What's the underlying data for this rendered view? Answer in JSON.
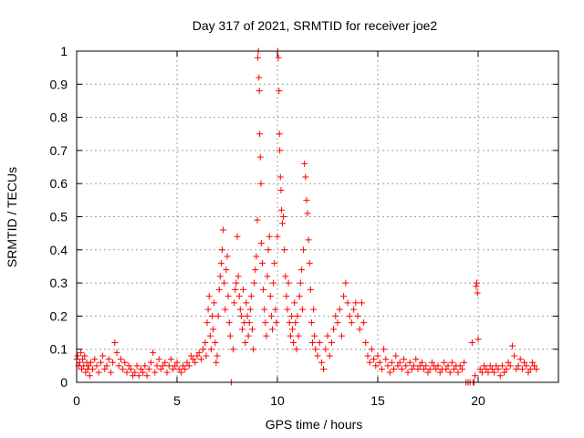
{
  "chart_data": {
    "type": "scatter",
    "title": "Day 317 of 2021, SRMTID for receiver joe2",
    "xlabel": "GPS time / hours",
    "ylabel": "SRMTID / TECUs",
    "xlim": [
      0,
      24
    ],
    "ylim": [
      0,
      1
    ],
    "x_ticks": [
      0,
      5,
      10,
      15,
      20
    ],
    "x_tick_labels": [
      "0",
      "5",
      "10",
      "15",
      "20"
    ],
    "y_ticks": [
      0,
      0.1,
      0.2,
      0.3,
      0.4,
      0.5,
      0.6,
      0.7,
      0.8,
      0.9,
      1
    ],
    "y_tick_labels": [
      "0",
      "0.1",
      "0.2",
      "0.3",
      "0.4",
      "0.5",
      "0.6",
      "0.7",
      "0.8",
      "0.9",
      "1"
    ],
    "grid": true,
    "marker": "+",
    "series": [
      {
        "name": "joe2",
        "color": "#ff0000",
        "points": [
          [
            0.0,
            0.07
          ],
          [
            0.05,
            0.08
          ],
          [
            0.1,
            0.05
          ],
          [
            0.15,
            0.06
          ],
          [
            0.2,
            0.09
          ],
          [
            0.25,
            0.04
          ],
          [
            0.3,
            0.07
          ],
          [
            0.35,
            0.05
          ],
          [
            0.4,
            0.08
          ],
          [
            0.45,
            0.03
          ],
          [
            0.5,
            0.06
          ],
          [
            0.55,
            0.04
          ],
          [
            0.6,
            0.05
          ],
          [
            0.65,
            0.02
          ],
          [
            0.7,
            0.06
          ],
          [
            0.8,
            0.04
          ],
          [
            0.9,
            0.07
          ],
          [
            1.0,
            0.05
          ],
          [
            1.1,
            0.03
          ],
          [
            1.2,
            0.06
          ],
          [
            1.3,
            0.08
          ],
          [
            1.4,
            0.04
          ],
          [
            1.5,
            0.05
          ],
          [
            1.6,
            0.07
          ],
          [
            1.7,
            0.03
          ],
          [
            1.8,
            0.06
          ],
          [
            1.9,
            0.12
          ],
          [
            2.0,
            0.09
          ],
          [
            2.1,
            0.05
          ],
          [
            2.2,
            0.07
          ],
          [
            2.3,
            0.04
          ],
          [
            2.4,
            0.06
          ],
          [
            2.5,
            0.03
          ],
          [
            2.6,
            0.05
          ],
          [
            2.7,
            0.04
          ],
          [
            2.8,
            0.02
          ],
          [
            2.9,
            0.03
          ],
          [
            3.0,
            0.05
          ],
          [
            3.1,
            0.02
          ],
          [
            3.2,
            0.04
          ],
          [
            3.3,
            0.03
          ],
          [
            3.4,
            0.05
          ],
          [
            3.5,
            0.02
          ],
          [
            3.6,
            0.04
          ],
          [
            3.7,
            0.06
          ],
          [
            3.8,
            0.09
          ],
          [
            3.9,
            0.03
          ],
          [
            4.0,
            0.05
          ],
          [
            4.1,
            0.07
          ],
          [
            4.2,
            0.04
          ],
          [
            4.3,
            0.05
          ],
          [
            4.4,
            0.06
          ],
          [
            4.5,
            0.03
          ],
          [
            4.6,
            0.05
          ],
          [
            4.7,
            0.07
          ],
          [
            4.8,
            0.04
          ],
          [
            4.9,
            0.05
          ],
          [
            5.0,
            0.06
          ],
          [
            5.1,
            0.04
          ],
          [
            5.2,
            0.03
          ],
          [
            5.3,
            0.05
          ],
          [
            5.4,
            0.04
          ],
          [
            5.5,
            0.06
          ],
          [
            5.6,
            0.05
          ],
          [
            5.7,
            0.08
          ],
          [
            5.8,
            0.07
          ],
          [
            5.9,
            0.06
          ],
          [
            6.0,
            0.08
          ],
          [
            6.1,
            0.09
          ],
          [
            6.2,
            0.07
          ],
          [
            6.3,
            0.1
          ],
          [
            6.4,
            0.12
          ],
          [
            6.45,
            0.08
          ],
          [
            6.5,
            0.18
          ],
          [
            6.55,
            0.22
          ],
          [
            6.6,
            0.26
          ],
          [
            6.65,
            0.14
          ],
          [
            6.7,
            0.1
          ],
          [
            6.75,
            0.2
          ],
          [
            6.8,
            0.16
          ],
          [
            6.85,
            0.24
          ],
          [
            6.9,
            0.12
          ],
          [
            6.95,
            0.06
          ],
          [
            7.0,
            0.08
          ],
          [
            7.05,
            0.2
          ],
          [
            7.1,
            0.28
          ],
          [
            7.15,
            0.32
          ],
          [
            7.2,
            0.36
          ],
          [
            7.25,
            0.4
          ],
          [
            7.3,
            0.46
          ],
          [
            7.35,
            0.3
          ],
          [
            7.4,
            0.22
          ],
          [
            7.45,
            0.34
          ],
          [
            7.5,
            0.38
          ],
          [
            7.55,
            0.26
          ],
          [
            7.6,
            0.18
          ],
          [
            7.65,
            0.14
          ],
          [
            7.7,
            0.0
          ],
          [
            7.8,
            0.1
          ],
          [
            7.85,
            0.24
          ],
          [
            7.9,
            0.28
          ],
          [
            7.95,
            0.3
          ],
          [
            8.0,
            0.44
          ],
          [
            8.05,
            0.32
          ],
          [
            8.1,
            0.26
          ],
          [
            8.15,
            0.22
          ],
          [
            8.2,
            0.2
          ],
          [
            8.25,
            0.16
          ],
          [
            8.3,
            0.28
          ],
          [
            8.35,
            0.18
          ],
          [
            8.4,
            0.12
          ],
          [
            8.45,
            0.24
          ],
          [
            8.5,
            0.2
          ],
          [
            8.55,
            0.14
          ],
          [
            8.6,
            0.18
          ],
          [
            8.65,
            0.22
          ],
          [
            8.7,
            0.26
          ],
          [
            8.75,
            0.16
          ],
          [
            8.8,
            0.1
          ],
          [
            8.85,
            0.3
          ],
          [
            8.9,
            0.34
          ],
          [
            8.95,
            0.38
          ],
          [
            9.0,
            0.49
          ],
          [
            9.02,
            0.98
          ],
          [
            9.05,
            1.0
          ],
          [
            9.08,
            0.92
          ],
          [
            9.1,
            0.88
          ],
          [
            9.12,
            0.75
          ],
          [
            9.15,
            0.68
          ],
          [
            9.18,
            0.6
          ],
          [
            9.2,
            0.42
          ],
          [
            9.25,
            0.36
          ],
          [
            9.3,
            0.28
          ],
          [
            9.35,
            0.22
          ],
          [
            9.4,
            0.18
          ],
          [
            9.45,
            0.14
          ],
          [
            9.5,
            0.32
          ],
          [
            9.55,
            0.4
          ],
          [
            9.6,
            0.44
          ],
          [
            9.65,
            0.26
          ],
          [
            9.7,
            0.2
          ],
          [
            9.75,
            0.16
          ],
          [
            9.8,
            0.3
          ],
          [
            9.85,
            0.36
          ],
          [
            9.9,
            0.22
          ],
          [
            9.95,
            0.18
          ],
          [
            10.0,
            0.44
          ],
          [
            10.02,
            1.0
          ],
          [
            10.05,
            0.98
          ],
          [
            10.08,
            0.88
          ],
          [
            10.1,
            0.75
          ],
          [
            10.12,
            0.7
          ],
          [
            10.15,
            0.62
          ],
          [
            10.18,
            0.58
          ],
          [
            10.2,
            0.52
          ],
          [
            10.25,
            0.48
          ],
          [
            10.3,
            0.5
          ],
          [
            10.35,
            0.4
          ],
          [
            10.4,
            0.32
          ],
          [
            10.45,
            0.26
          ],
          [
            10.5,
            0.22
          ],
          [
            10.55,
            0.3
          ],
          [
            10.6,
            0.18
          ],
          [
            10.65,
            0.14
          ],
          [
            10.7,
            0.2
          ],
          [
            10.75,
            0.16
          ],
          [
            10.8,
            0.12
          ],
          [
            10.85,
            0.24
          ],
          [
            10.9,
            0.18
          ],
          [
            10.95,
            0.1
          ],
          [
            11.0,
            0.2
          ],
          [
            11.05,
            0.14
          ],
          [
            11.1,
            0.26
          ],
          [
            11.15,
            0.3
          ],
          [
            11.2,
            0.34
          ],
          [
            11.25,
            0.22
          ],
          [
            11.3,
            0.4
          ],
          [
            11.35,
            0.66
          ],
          [
            11.4,
            0.62
          ],
          [
            11.45,
            0.55
          ],
          [
            11.5,
            0.51
          ],
          [
            11.55,
            0.43
          ],
          [
            11.6,
            0.36
          ],
          [
            11.65,
            0.28
          ],
          [
            11.7,
            0.18
          ],
          [
            11.75,
            0.12
          ],
          [
            11.8,
            0.22
          ],
          [
            11.85,
            0.14
          ],
          [
            11.9,
            0.1
          ],
          [
            12.0,
            0.08
          ],
          [
            12.1,
            0.12
          ],
          [
            12.2,
            0.06
          ],
          [
            12.3,
            0.04
          ],
          [
            12.4,
            0.1
          ],
          [
            12.5,
            0.14
          ],
          [
            12.6,
            0.08
          ],
          [
            12.7,
            0.12
          ],
          [
            12.8,
            0.16
          ],
          [
            12.9,
            0.2
          ],
          [
            13.0,
            0.18
          ],
          [
            13.1,
            0.22
          ],
          [
            13.2,
            0.14
          ],
          [
            13.3,
            0.26
          ],
          [
            13.4,
            0.3
          ],
          [
            13.5,
            0.24
          ],
          [
            13.6,
            0.2
          ],
          [
            13.7,
            0.18
          ],
          [
            13.8,
            0.22
          ],
          [
            13.9,
            0.24
          ],
          [
            14.0,
            0.2
          ],
          [
            14.1,
            0.16
          ],
          [
            14.2,
            0.24
          ],
          [
            14.3,
            0.18
          ],
          [
            14.4,
            0.12
          ],
          [
            14.5,
            0.08
          ],
          [
            14.6,
            0.06
          ],
          [
            14.7,
            0.1
          ],
          [
            14.8,
            0.07
          ],
          [
            14.9,
            0.05
          ],
          [
            15.0,
            0.08
          ],
          [
            15.1,
            0.06
          ],
          [
            15.2,
            0.04
          ],
          [
            15.3,
            0.1
          ],
          [
            15.4,
            0.07
          ],
          [
            15.5,
            0.05
          ],
          [
            15.6,
            0.03
          ],
          [
            15.7,
            0.06
          ],
          [
            15.8,
            0.04
          ],
          [
            15.9,
            0.08
          ],
          [
            16.0,
            0.05
          ],
          [
            16.1,
            0.06
          ],
          [
            16.2,
            0.04
          ],
          [
            16.3,
            0.07
          ],
          [
            16.4,
            0.05
          ],
          [
            16.5,
            0.03
          ],
          [
            16.6,
            0.06
          ],
          [
            16.7,
            0.04
          ],
          [
            16.8,
            0.05
          ],
          [
            16.9,
            0.07
          ],
          [
            17.0,
            0.04
          ],
          [
            17.1,
            0.05
          ],
          [
            17.2,
            0.06
          ],
          [
            17.3,
            0.04
          ],
          [
            17.4,
            0.05
          ],
          [
            17.5,
            0.03
          ],
          [
            17.6,
            0.04
          ],
          [
            17.7,
            0.06
          ],
          [
            17.8,
            0.05
          ],
          [
            17.9,
            0.04
          ],
          [
            18.0,
            0.05
          ],
          [
            18.1,
            0.03
          ],
          [
            18.2,
            0.04
          ],
          [
            18.3,
            0.06
          ],
          [
            18.4,
            0.04
          ],
          [
            18.5,
            0.05
          ],
          [
            18.6,
            0.03
          ],
          [
            18.7,
            0.06
          ],
          [
            18.8,
            0.04
          ],
          [
            18.9,
            0.05
          ],
          [
            19.0,
            0.03
          ],
          [
            19.1,
            0.05
          ],
          [
            19.2,
            0.04
          ],
          [
            19.3,
            0.06
          ],
          [
            19.4,
            0.0
          ],
          [
            19.5,
            0.0
          ],
          [
            19.6,
            0.0
          ],
          [
            19.7,
            0.12
          ],
          [
            19.75,
            0.0
          ],
          [
            19.8,
            0.0
          ],
          [
            19.85,
            0.02
          ],
          [
            19.9,
            0.29
          ],
          [
            19.93,
            0.3
          ],
          [
            19.96,
            0.27
          ],
          [
            20.0,
            0.13
          ],
          [
            20.1,
            0.04
          ],
          [
            20.2,
            0.03
          ],
          [
            20.3,
            0.05
          ],
          [
            20.4,
            0.04
          ],
          [
            20.5,
            0.03
          ],
          [
            20.6,
            0.05
          ],
          [
            20.7,
            0.04
          ],
          [
            20.8,
            0.03
          ],
          [
            20.9,
            0.05
          ],
          [
            21.0,
            0.04
          ],
          [
            21.1,
            0.02
          ],
          [
            21.2,
            0.05
          ],
          [
            21.3,
            0.03
          ],
          [
            21.4,
            0.04
          ],
          [
            21.5,
            0.06
          ],
          [
            21.6,
            0.05
          ],
          [
            21.7,
            0.11
          ],
          [
            21.8,
            0.08
          ],
          [
            21.9,
            0.04
          ],
          [
            22.0,
            0.05
          ],
          [
            22.1,
            0.07
          ],
          [
            22.2,
            0.04
          ],
          [
            22.3,
            0.06
          ],
          [
            22.4,
            0.05
          ],
          [
            22.5,
            0.03
          ],
          [
            22.6,
            0.04
          ],
          [
            22.7,
            0.06
          ],
          [
            22.8,
            0.05
          ],
          [
            22.9,
            0.04
          ]
        ]
      }
    ]
  }
}
